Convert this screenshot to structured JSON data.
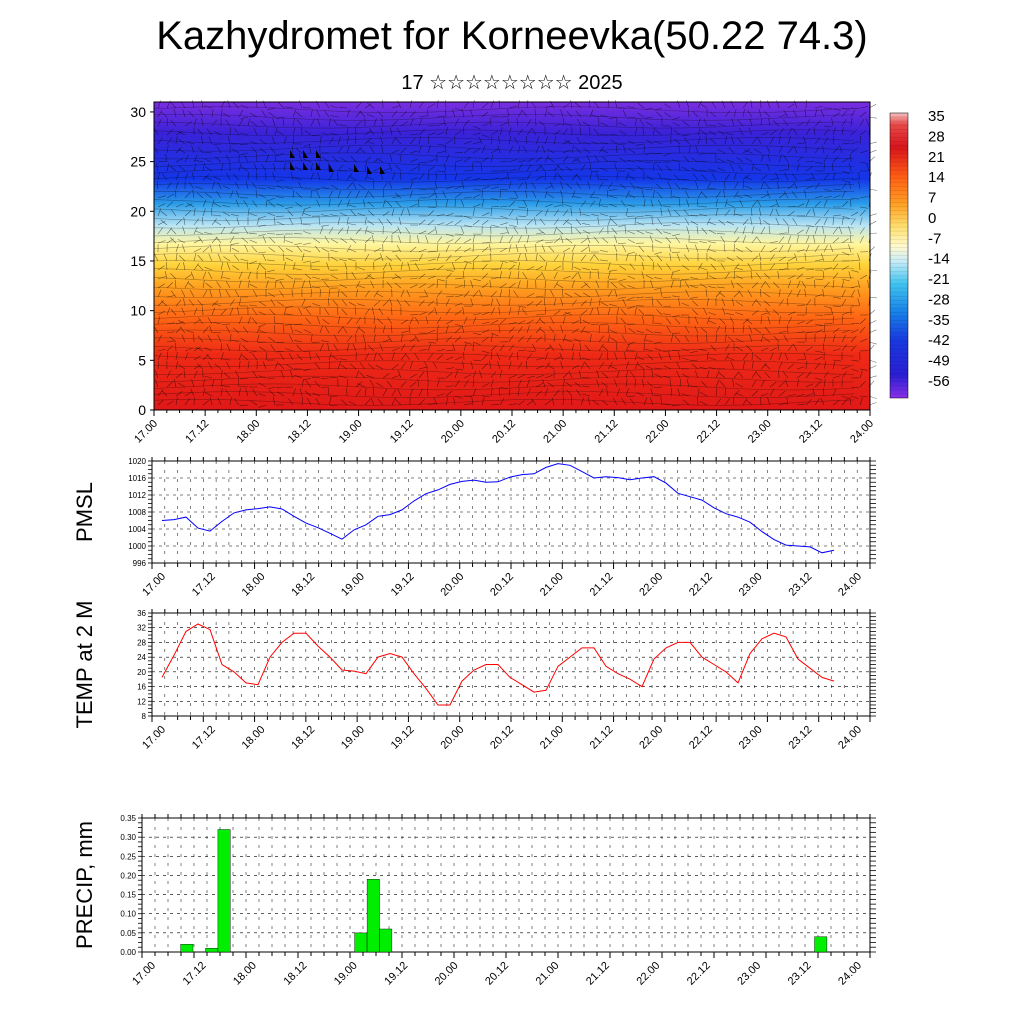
{
  "header": {
    "title": "Kazhydromet for Korneevka(50.22 74.3)",
    "subtitle": "17 ☆☆☆☆☆☆☆☆ 2025"
  },
  "x_tick_labels": [
    "17.00",
    "17.12",
    "18.00",
    "18.12",
    "19.00",
    "19.12",
    "20.00",
    "20.12",
    "21.00",
    "21.12",
    "22.00",
    "22.12",
    "23.00",
    "23.12",
    "24.00"
  ],
  "chart_data": [
    {
      "type": "heatmap",
      "name": "cross-section",
      "ylim": [
        0,
        31
      ],
      "y_ticks": [
        0,
        5,
        10,
        15,
        20,
        25,
        30
      ],
      "colorbar": {
        "labels": [
          "35",
          "28",
          "21",
          "14",
          "7",
          "0",
          "-7",
          "-14",
          "-21",
          "-28",
          "-35",
          "-42",
          "-49",
          "-56"
        ],
        "colors": [
          "#f4b8b8",
          "#e84a4a",
          "#d8141c",
          "#e83018",
          "#ff6a10",
          "#ff9a20",
          "#ffd040",
          "#fff8a0",
          "#b0e8f8",
          "#40c8f0",
          "#1890e0",
          "#1840e0",
          "#2020d0",
          "#8020e0"
        ]
      }
    },
    {
      "type": "line",
      "ylabel": "PMSL",
      "ylim": [
        996,
        1020
      ],
      "y_ticks": [
        996,
        1000,
        1004,
        1008,
        1012,
        1016,
        1020
      ],
      "color": "#0000ff",
      "values": [
        1006,
        1006.2,
        1006.8,
        1004.2,
        1003.5,
        1005.8,
        1007.8,
        1008.5,
        1008.8,
        1009.2,
        1008.7,
        1007.0,
        1005.4,
        1004.3,
        1003.0,
        1001.6,
        1003.8,
        1005.0,
        1007.0,
        1007.4,
        1008.5,
        1010.6,
        1012.3,
        1013.2,
        1014.5,
        1015.2,
        1015.5,
        1015.0,
        1015.1,
        1016.2,
        1016.8,
        1017.0,
        1018.5,
        1019.4,
        1019.0,
        1017.5,
        1016.0,
        1016.3,
        1016.1,
        1015.6,
        1016.0,
        1016.3,
        1014.8,
        1012.4,
        1011.6,
        1010.8,
        1009.0,
        1007.6,
        1006.8,
        1005.6,
        1003.4,
        1001.5,
        1000.2,
        1000.0,
        999.8,
        998.4,
        999.0
      ]
    },
    {
      "type": "line",
      "ylabel": "TEMP at 2 M",
      "ylim": [
        8,
        36
      ],
      "y_ticks": [
        8,
        12,
        16,
        20,
        24,
        28,
        32,
        36
      ],
      "color": "#ff0000",
      "values": [
        18.5,
        24.5,
        31.0,
        33.0,
        31.5,
        22.0,
        20.0,
        17.0,
        16.5,
        24.0,
        28.0,
        30.5,
        30.5,
        27.0,
        24.0,
        20.5,
        20.2,
        19.5,
        24.0,
        25.0,
        24.0,
        19.5,
        15.5,
        11.0,
        11.0,
        17.5,
        20.5,
        22.0,
        22.0,
        18.5,
        16.5,
        14.5,
        15.0,
        21.5,
        24.0,
        26.5,
        26.5,
        21.5,
        19.5,
        18.0,
        16.0,
        23.5,
        26.5,
        28.0,
        28.0,
        24.0,
        22.0,
        20.0,
        17.0,
        25.0,
        29.0,
        30.5,
        29.5,
        23.5,
        21.0,
        18.5,
        17.5
      ]
    },
    {
      "type": "bar",
      "ylabel": "PRECIP, mm",
      "ylim": [
        0,
        0.35
      ],
      "y_tick_labels": [
        "0.00",
        "0.05",
        "0.10",
        "0.15",
        "0.20",
        "0.25",
        "0.30",
        "0.35"
      ],
      "color": "#00ee00",
      "bars": [
        {
          "t": 2,
          "value": 0.02
        },
        {
          "t": 4,
          "value": 0.01
        },
        {
          "t": 5,
          "value": 0.32
        },
        {
          "t": 16,
          "value": 0.05
        },
        {
          "t": 17,
          "value": 0.19
        },
        {
          "t": 18,
          "value": 0.06
        },
        {
          "t": 53,
          "value": 0.04
        }
      ]
    }
  ]
}
